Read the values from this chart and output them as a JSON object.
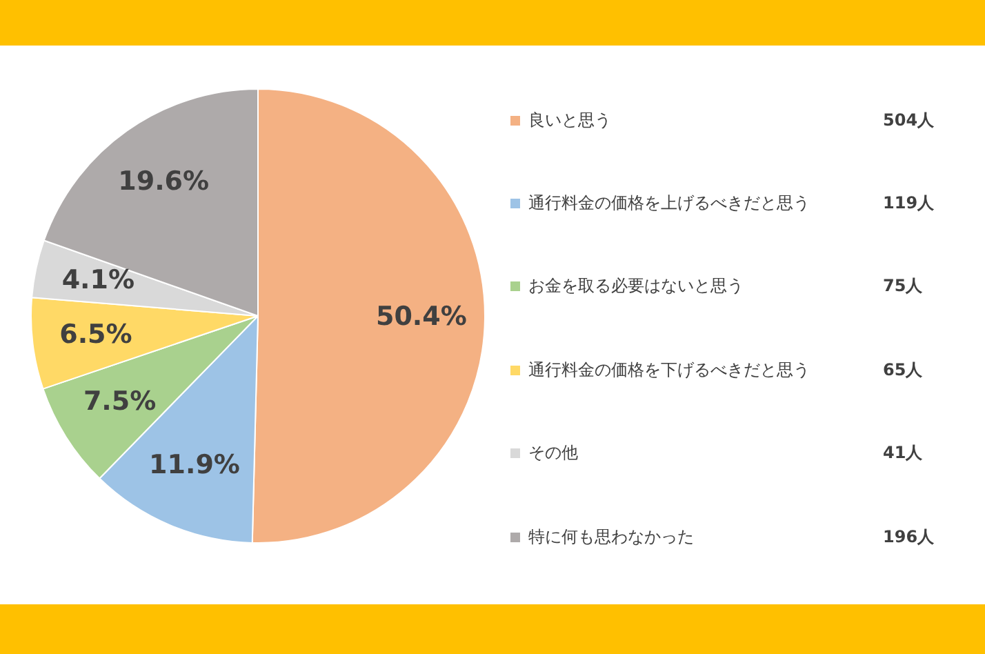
{
  "chart_data": {
    "type": "pie",
    "categories": [
      "良いと思う",
      "通行料金の価格を上げるべきだと思う",
      "お金を取る必要はないと思う",
      "通行料金の価格を下げるべきだと思う",
      "その他",
      "特に何も思わなかった"
    ],
    "values": [
      50.4,
      11.9,
      7.5,
      6.5,
      4.1,
      19.6
    ],
    "value_labels": [
      "50.4%",
      "11.9%",
      "7.5%",
      "6.5%",
      "4.1%",
      "19.6%"
    ],
    "colors": [
      "#f4b183",
      "#9dc3e6",
      "#a9d18e",
      "#ffd966",
      "#d9d9d9",
      "#aeaaaa"
    ],
    "annotations": [
      "504人",
      "119人",
      "75人",
      "65人",
      "41人",
      "196人"
    ],
    "legend": "right"
  }
}
